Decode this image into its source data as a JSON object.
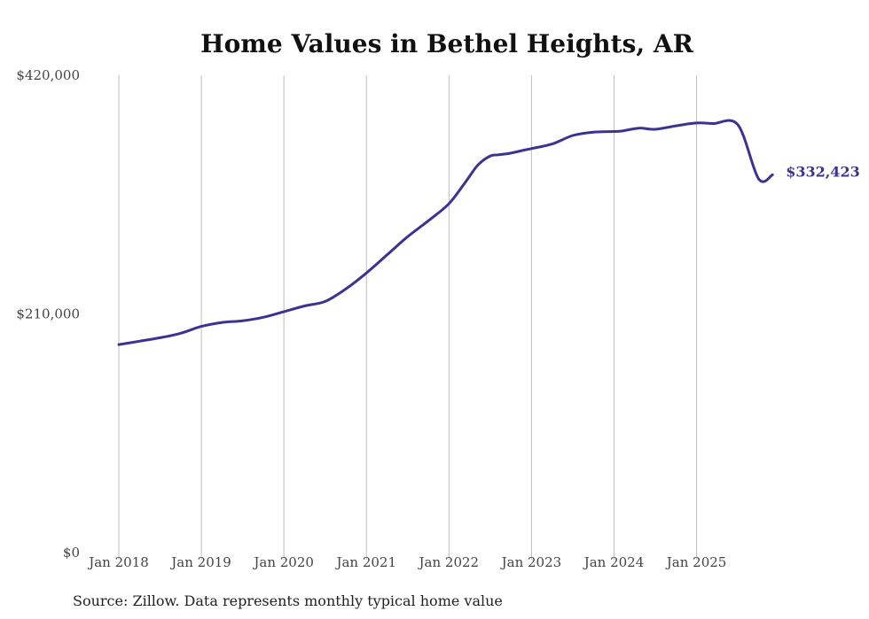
{
  "chart_data": {
    "type": "line",
    "title": "Home Values in Bethel Heights, AR",
    "xlabel": "",
    "ylabel": "",
    "ylim": [
      0,
      420000
    ],
    "xlim": [
      2018.0,
      2025.95
    ],
    "y_ticks": [
      {
        "value": 0,
        "label": "$0"
      },
      {
        "value": 210000,
        "label": "$210,000"
      },
      {
        "value": 420000,
        "label": "$420,000"
      }
    ],
    "x_ticks": [
      {
        "value": 2018,
        "label": "Jan 2018"
      },
      {
        "value": 2019,
        "label": "Jan 2019"
      },
      {
        "value": 2020,
        "label": "Jan 2020"
      },
      {
        "value": 2021,
        "label": "Jan 2021"
      },
      {
        "value": 2022,
        "label": "Jan 2022"
      },
      {
        "value": 2023,
        "label": "Jan 2023"
      },
      {
        "value": 2024,
        "label": "Jan 2024"
      },
      {
        "value": 2025,
        "label": "Jan 2025"
      }
    ],
    "grid": "vertical",
    "series": [
      {
        "name": "Typical home value",
        "color": "#3b3391",
        "end_label": "$332,423",
        "x": [
          2018.0,
          2018.25,
          2018.5,
          2018.75,
          2019.0,
          2019.25,
          2019.5,
          2019.75,
          2020.0,
          2020.25,
          2020.5,
          2020.75,
          2021.0,
          2021.25,
          2021.5,
          2021.75,
          2022.0,
          2022.2,
          2022.35,
          2022.5,
          2022.6,
          2022.75,
          2022.9,
          2023.0,
          2023.25,
          2023.5,
          2023.75,
          2024.0,
          2024.1,
          2024.3,
          2024.5,
          2024.75,
          2025.0,
          2025.2,
          2025.5,
          2025.75,
          2025.92
        ],
        "values": [
          183000,
          186000,
          189000,
          193000,
          199000,
          202500,
          204000,
          207000,
          212000,
          217000,
          221000,
          232000,
          246000,
          262000,
          278000,
          292000,
          307000,
          326000,
          341000,
          349000,
          350000,
          351500,
          354000,
          355500,
          359500,
          367000,
          370000,
          370500,
          371000,
          373500,
          372500,
          375500,
          378000,
          377500,
          376500,
          329000,
          332423
        ]
      }
    ]
  },
  "source_note": "Source: Zillow. Data represents monthly typical home value"
}
